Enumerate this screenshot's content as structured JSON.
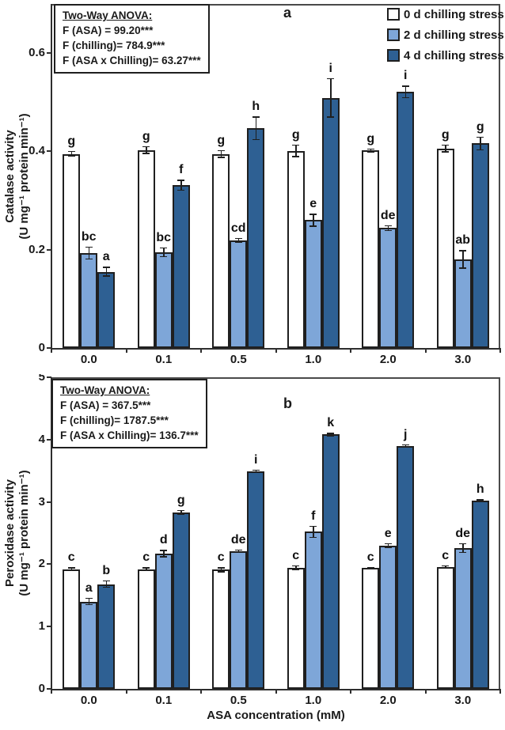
{
  "figure": {
    "background": "#ffffff",
    "accent_light_blue": "#7EA6D8",
    "accent_dark_blue": "#2E6093",
    "line_color": "#1f1f1f"
  },
  "legend": {
    "position": "top-right of panel a",
    "items": [
      {
        "label": "0 d chilling stress",
        "color": "#FFFFFF"
      },
      {
        "label": "2 d chilling stress",
        "color": "#7EA6D8"
      },
      {
        "label": "4 d chilling stress",
        "color": "#2E6093"
      }
    ]
  },
  "chart_data": [
    {
      "id": "a",
      "type": "bar",
      "panel_label": "a",
      "ylabel_line1": "Catalase activity",
      "ylabel_line2": "(U mg⁻¹ protein min⁻¹)",
      "xlabel": "",
      "categories": [
        "0.0",
        "0.1",
        "0.5",
        "1.0",
        "2.0",
        "3.0"
      ],
      "ylim": [
        0,
        0.7
      ],
      "yticks": [
        0,
        0.2,
        0.4,
        0.6
      ],
      "ytick_labels": [
        "0",
        "0.2",
        "0.4",
        "0.6"
      ],
      "grid": false,
      "legend_visible": true,
      "anova": {
        "title": "Two-Way ANOVA:",
        "lines": [
          "F (ASA) = 99.20***",
          "F (chilling)= 784.9***",
          "F (ASA x Chilling)= 63.27***"
        ]
      },
      "series": [
        {
          "name": "0 d chilling stress",
          "color": "#FFFFFF",
          "values": [
            0.395,
            0.403,
            0.395,
            0.401,
            0.402,
            0.406
          ],
          "errors": [
            0.006,
            0.008,
            0.008,
            0.013,
            0.004,
            0.008
          ],
          "letters": [
            "g",
            "g",
            "g",
            "g",
            "g",
            "g"
          ]
        },
        {
          "name": "2 d chilling stress",
          "color": "#7EA6D8",
          "values": [
            0.193,
            0.195,
            0.219,
            0.26,
            0.244,
            0.18
          ],
          "errors": [
            0.013,
            0.01,
            0.005,
            0.013,
            0.006,
            0.019
          ],
          "letters": [
            "bc",
            "bc",
            "cd",
            "e",
            "de",
            "ab"
          ]
        },
        {
          "name": "4 d chilling stress",
          "color": "#2E6093",
          "values": [
            0.155,
            0.331,
            0.447,
            0.509,
            0.521,
            0.416
          ],
          "errors": [
            0.01,
            0.011,
            0.024,
            0.04,
            0.013,
            0.014
          ],
          "letters": [
            "a",
            "f",
            "h",
            "i",
            "i",
            "g"
          ]
        }
      ]
    },
    {
      "id": "b",
      "type": "bar",
      "panel_label": "b",
      "ylabel_line1": "Peroxidase activity",
      "ylabel_line2": "(U mg⁻¹ protein min⁻¹)",
      "xlabel": "ASA concentration (mM)",
      "categories": [
        "0.0",
        "0.1",
        "0.5",
        "1.0",
        "2.0",
        "3.0"
      ],
      "ylim": [
        0,
        5
      ],
      "yticks": [
        0,
        1,
        2,
        3,
        4,
        5
      ],
      "ytick_labels": [
        "0",
        "1",
        "2",
        "3",
        "4",
        "5"
      ],
      "grid": false,
      "legend_visible": false,
      "anova": {
        "title": "Two-Way ANOVA:",
        "lines": [
          "F (ASA) = 367.5***",
          "F (chilling)= 1787.5***",
          "F (ASA x Chilling)= 136.7***"
        ]
      },
      "series": [
        {
          "name": "0 d chilling stress",
          "color": "#FFFFFF",
          "values": [
            1.92,
            1.92,
            1.91,
            1.94,
            1.94,
            1.96
          ],
          "errors": [
            0.03,
            0.03,
            0.04,
            0.04,
            0.02,
            0.025
          ],
          "letters": [
            "c",
            "c",
            "c",
            "c",
            "c",
            "c"
          ]
        },
        {
          "name": "2 d chilling stress",
          "color": "#7EA6D8",
          "values": [
            1.4,
            2.17,
            2.21,
            2.52,
            2.3,
            2.26
          ],
          "errors": [
            0.06,
            0.06,
            0.025,
            0.1,
            0.04,
            0.08
          ],
          "letters": [
            "a",
            "d",
            "de",
            "f",
            "e",
            "de"
          ]
        },
        {
          "name": "4 d chilling stress",
          "color": "#2E6093",
          "values": [
            1.68,
            2.83,
            3.49,
            4.08,
            3.9,
            3.02
          ],
          "errors": [
            0.06,
            0.04,
            0.03,
            0.03,
            0.025,
            0.025
          ],
          "letters": [
            "b",
            "g",
            "i",
            "k",
            "j",
            "h"
          ]
        }
      ]
    }
  ]
}
